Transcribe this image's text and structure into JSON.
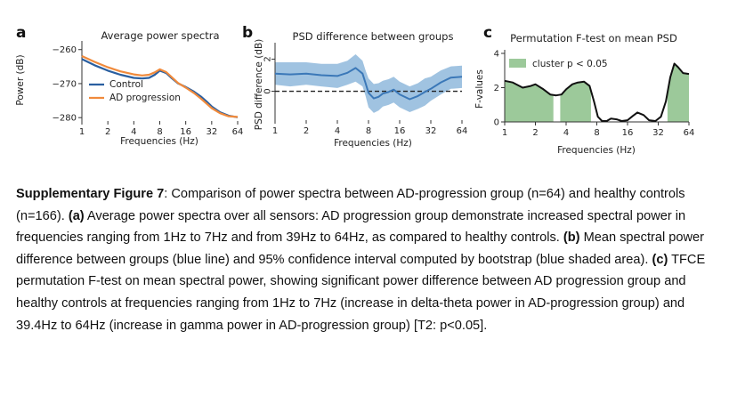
{
  "colors": {
    "control": "#2a5fa0",
    "ad": "#f08a3c",
    "diff_line": "#3b78b8",
    "diff_band": "#8fb8dc",
    "fstat_line": "#111111",
    "cluster_fill": "#9cc99a",
    "axis": "#333333"
  },
  "chart_data": [
    {
      "id": "a",
      "panel_letter": "a",
      "type": "line",
      "title": "Average power spectra",
      "xlabel": "Frequencies (Hz)",
      "ylabel": "Power (dB)",
      "xscale": "log2",
      "xlim": [
        1,
        64
      ],
      "ylim": [
        -281,
        -258.5
      ],
      "xticks": [
        1,
        2,
        4,
        8,
        16,
        32,
        64
      ],
      "xtick_labels": [
        "1",
        "2",
        "4",
        "8",
        "16",
        "32",
        "64"
      ],
      "yticks": [
        -260,
        -270,
        -280
      ],
      "ytick_labels": [
        "−260",
        "−270",
        "−280"
      ],
      "legend": {
        "position": "bottom-left",
        "entries": [
          "Control",
          "AD progression"
        ]
      },
      "x": [
        1.0,
        1.4,
        2.0,
        2.8,
        4.0,
        5.0,
        6.0,
        7.0,
        8.0,
        9.5,
        11.0,
        13.0,
        16.0,
        20.0,
        24.0,
        28.0,
        32.0,
        40.0,
        50.0,
        64.0
      ],
      "series": [
        {
          "name": "Control",
          "values": [
            -262.8,
            -264.6,
            -266.2,
            -267.4,
            -268.3,
            -268.5,
            -268.3,
            -267.4,
            -266.2,
            -266.9,
            -268.4,
            -269.9,
            -271.0,
            -272.4,
            -273.8,
            -275.3,
            -276.7,
            -278.4,
            -279.4,
            -279.9
          ]
        },
        {
          "name": "AD progression",
          "values": [
            -261.9,
            -263.6,
            -265.2,
            -266.4,
            -267.3,
            -267.6,
            -267.4,
            -266.7,
            -265.8,
            -266.6,
            -268.1,
            -269.8,
            -271.2,
            -272.8,
            -274.4,
            -275.9,
            -277.2,
            -278.7,
            -279.6,
            -279.8
          ]
        }
      ]
    },
    {
      "id": "b",
      "panel_letter": "b",
      "type": "line",
      "title": "PSD difference between groups",
      "xlabel": "Frequencies (Hz)",
      "ylabel": "PSD difference (dB)",
      "xscale": "log2",
      "xlim": [
        1,
        64
      ],
      "ylim": [
        -1.8,
        2.8
      ],
      "xticks": [
        1,
        2,
        4,
        8,
        16,
        32,
        64
      ],
      "xtick_labels": [
        "1",
        "2",
        "4",
        "8",
        "16",
        "32",
        "64"
      ],
      "yticks": [
        0,
        2
      ],
      "ytick_labels": [
        "0",
        "2"
      ],
      "reference_line": 0,
      "x": [
        1.0,
        1.4,
        2.0,
        2.8,
        4.0,
        5.0,
        6.0,
        7.0,
        7.5,
        8.0,
        9.0,
        10.0,
        11.0,
        12.5,
        14.0,
        16.0,
        20.0,
        24.0,
        28.0,
        32.0,
        40.0,
        50.0,
        64.0
      ],
      "series": [
        {
          "name": "Mean PSD difference",
          "values": [
            1.1,
            1.05,
            1.1,
            1.0,
            0.95,
            1.15,
            1.45,
            1.1,
            0.5,
            -0.1,
            -0.45,
            -0.35,
            -0.15,
            -0.05,
            0.1,
            -0.2,
            -0.5,
            -0.3,
            -0.05,
            0.15,
            0.55,
            0.85,
            0.9
          ],
          "ci_lower": [
            0.4,
            0.3,
            0.4,
            0.3,
            0.2,
            0.4,
            0.6,
            0.3,
            -0.3,
            -1.0,
            -1.35,
            -1.2,
            -0.95,
            -0.85,
            -0.7,
            -1.0,
            -1.3,
            -1.1,
            -0.9,
            -0.6,
            -0.2,
            0.15,
            0.2
          ],
          "ci_upper": [
            1.8,
            1.8,
            1.8,
            1.7,
            1.7,
            1.9,
            2.3,
            1.9,
            1.3,
            0.8,
            0.45,
            0.5,
            0.65,
            0.75,
            0.9,
            0.6,
            0.3,
            0.5,
            0.8,
            0.9,
            1.3,
            1.55,
            1.6
          ]
        }
      ]
    },
    {
      "id": "c",
      "panel_letter": "c",
      "type": "area",
      "title": "Permutation F-test on mean PSD",
      "xlabel": "Frequencies (Hz)",
      "ylabel": "F-values",
      "xscale": "log2",
      "xlim": [
        1,
        64
      ],
      "ylim": [
        0,
        4
      ],
      "xticks": [
        1,
        2,
        4,
        8,
        16,
        32,
        64
      ],
      "xtick_labels": [
        "1",
        "2",
        "4",
        "8",
        "16",
        "32",
        "64"
      ],
      "yticks": [
        0,
        2,
        4
      ],
      "ytick_labels": [
        "0",
        "2",
        "4"
      ],
      "legend": {
        "position": "top-left",
        "entries": [
          "cluster p < 0.05"
        ]
      },
      "clusters": [
        [
          1.0,
          3.0
        ],
        [
          3.5,
          7.0
        ],
        [
          39.4,
          64.0
        ]
      ],
      "x": [
        1.0,
        1.2,
        1.5,
        1.8,
        2.0,
        2.4,
        2.8,
        3.2,
        3.6,
        4.0,
        4.6,
        5.2,
        6.0,
        6.8,
        7.5,
        8.2,
        9.0,
        10.0,
        11.0,
        12.5,
        14.0,
        16.0,
        18.0,
        20.0,
        23.0,
        26.0,
        30.0,
        34.0,
        38.0,
        42.0,
        46.0,
        50.0,
        56.0,
        64.0
      ],
      "series": [
        {
          "name": "F-value",
          "values": [
            2.4,
            2.3,
            2.0,
            2.1,
            2.2,
            1.9,
            1.6,
            1.55,
            1.6,
            1.9,
            2.2,
            2.3,
            2.35,
            2.1,
            1.2,
            0.3,
            0.05,
            0.05,
            0.2,
            0.15,
            0.05,
            0.1,
            0.35,
            0.55,
            0.4,
            0.1,
            0.05,
            0.3,
            1.2,
            2.6,
            3.4,
            3.2,
            2.85,
            2.8
          ]
        }
      ]
    }
  ],
  "caption": {
    "fig_label": "Supplementary Figure 7",
    "intro": ": Comparison of power spectra between AD-progression group (n=64) and healthy controls (n=166). ",
    "a_label": "(a)",
    "a_text": " Average power spectra over all sensors: AD progression group demonstrate increased spectral power in frequencies ranging from 1Hz to 7Hz and from 39Hz to 64Hz, as compared to healthy controls. ",
    "b_label": "(b)",
    "b_text": " Mean spectral power difference between groups (blue line) and 95% confidence interval computed by bootstrap (blue shaded area). ",
    "c_label": "(c)",
    "c_text": " TFCE permutation F-test on mean spectral power, showing significant power difference between AD progression group and healthy controls at frequencies ranging from 1Hz to 7Hz (increase in delta-theta power in AD-progression group) and 39.4Hz to 64Hz (increase in gamma power in AD-progression group) [T2: p<0.05]."
  }
}
